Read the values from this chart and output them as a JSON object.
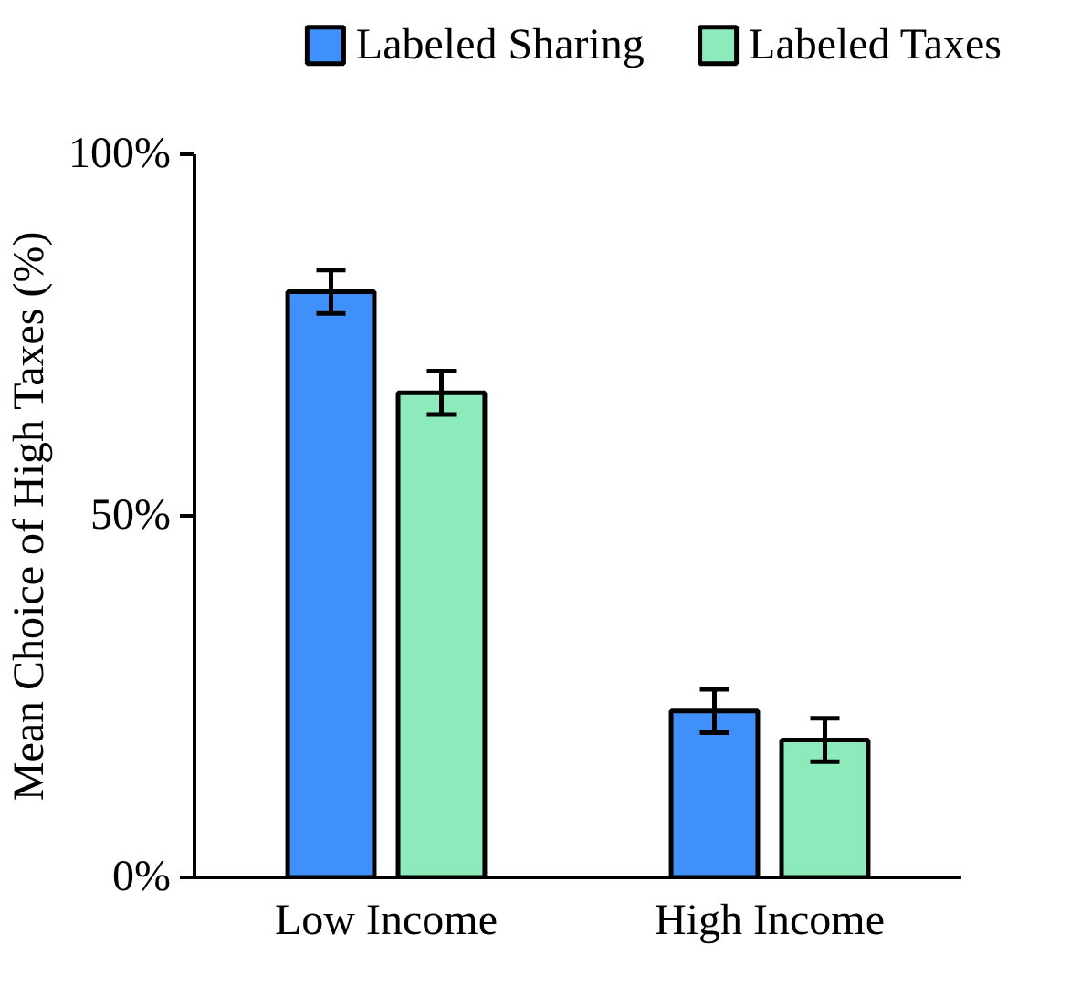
{
  "chart_data": {
    "type": "bar",
    "ylabel": "Mean Choice of High Taxes (%)",
    "categories": [
      "Low Income",
      "High Income"
    ],
    "series": [
      {
        "name": "Labeled Sharing",
        "color": "#4090fc",
        "values": [
          81,
          23
        ],
        "errors": [
          3,
          3
        ]
      },
      {
        "name": "Labeled Taxes",
        "color": "#8ceabb",
        "values": [
          67,
          19
        ],
        "errors": [
          3,
          3
        ]
      }
    ],
    "ylim": [
      0,
      100
    ],
    "yticks": [
      {
        "value": 0,
        "label": "0%"
      },
      {
        "value": 50,
        "label": "50%"
      },
      {
        "value": 100,
        "label": "100%"
      }
    ],
    "grid": false,
    "legend": "top"
  }
}
